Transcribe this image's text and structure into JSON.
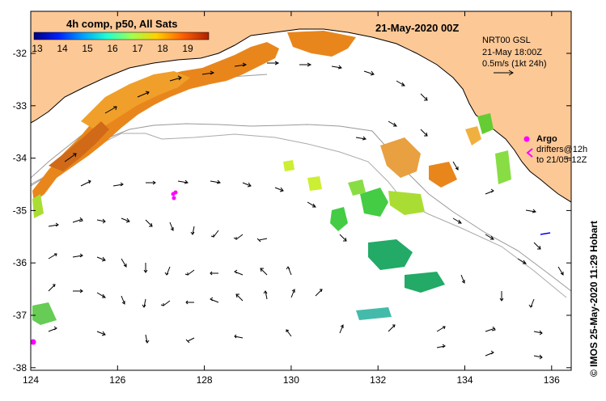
{
  "colorbar": {
    "title": "4h comp, p50, All Sats",
    "ticks": [
      "13",
      "14",
      "15",
      "16",
      "17",
      "18",
      "19"
    ],
    "colors": [
      "#00007f",
      "#0020ff",
      "#00a0ff",
      "#20ffd0",
      "#a0ff50",
      "#ffd000",
      "#ff6000",
      "#b02000"
    ]
  },
  "map": {
    "date_title": "21-May-2020 00Z",
    "land_color": "#fcc896",
    "sea_color": "#ffffff",
    "x_ticks": [
      "124",
      "126",
      "128",
      "130",
      "132",
      "134",
      "136"
    ],
    "y_ticks": [
      "-32",
      "-33",
      "-34",
      "-35",
      "-36",
      "-37",
      "-38"
    ]
  },
  "legend": {
    "source": "NRT00 GSL",
    "time": "21-May 18:00Z",
    "scale": "0.5m/s (1kt 24h)",
    "argo_label": "Argo",
    "drifter_label": "drifters@12h",
    "drifter_range": "to 21/05-12Z"
  },
  "side_label": "© IMOS 25-May-2020 11:29 Hobart"
}
